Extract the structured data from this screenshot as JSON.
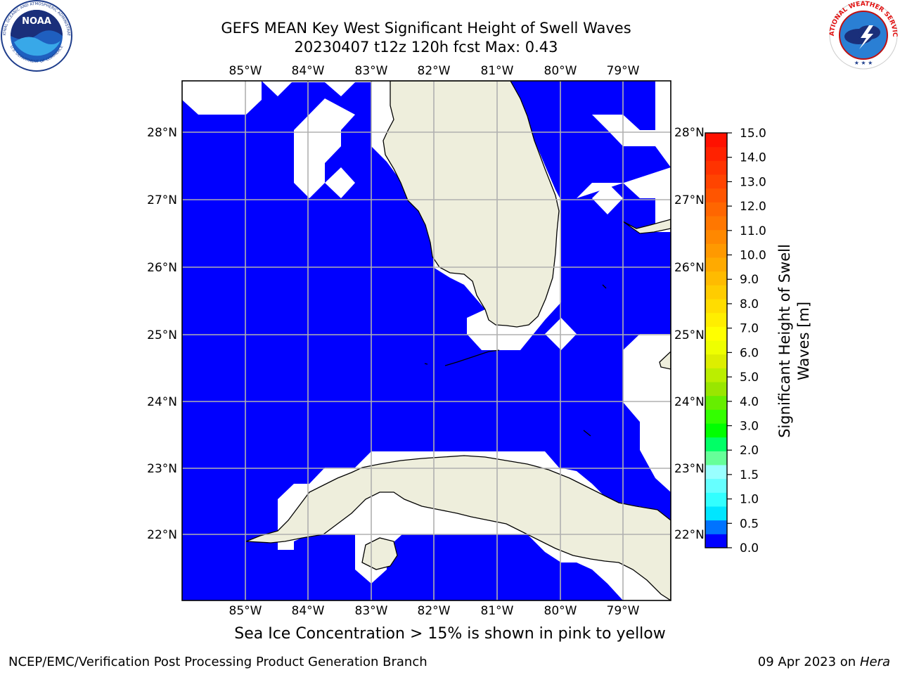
{
  "header": {
    "title_line1": "GEFS MEAN Key West Significant Height of Swell Waves",
    "title_line2": "20230407 t12z 120h fcst   Max: 0.43"
  },
  "logos": {
    "left": {
      "name": "NOAA",
      "ring_text": "NATIONAL OCEANIC AND ATMOSPHERIC ADMINISTRATION",
      "bottom_text": "U.S. DEPARTMENT OF COMMERCE"
    },
    "right": {
      "ring_text": "NATIONAL WEATHER SERVICE"
    }
  },
  "map": {
    "region": "Florida Straits / Key West",
    "lon_labels": [
      "85°W",
      "84°W",
      "83°W",
      "82°W",
      "81°W",
      "80°W",
      "79°W"
    ],
    "lat_labels": [
      "28°N",
      "27°N",
      "26°N",
      "25°N",
      "24°N",
      "23°N",
      "22°N"
    ],
    "colors": {
      "water": "#0000ff",
      "land": "#eeeedc",
      "grid": "#b0b0b0",
      "no_data": "#ffffff"
    }
  },
  "colorbar": {
    "label": "Significant Height of Swell Waves [m]",
    "label_line1": "Significant Height of Swell",
    "label_line2": "Waves [m]",
    "ticks": [
      "15.0",
      "14.0",
      "13.0",
      "12.0",
      "11.0",
      "10.0",
      "9.0",
      "8.0",
      "7.0",
      "6.0",
      "5.0",
      "4.0",
      "3.0",
      "2.0",
      "1.5",
      "1.0",
      "0.5",
      "0.0"
    ],
    "levels": [
      0.0,
      0.5,
      1.0,
      1.5,
      2.0,
      2.5,
      3.0,
      3.5,
      4.0,
      4.5,
      5.0,
      5.5,
      6.0,
      6.5,
      7.0,
      7.5,
      8.0,
      8.5,
      9.0,
      9.5,
      10.0,
      10.5,
      11.0,
      11.5,
      12.0,
      12.5,
      13.0,
      13.5,
      14.0,
      14.5,
      15.0
    ],
    "band_colors": [
      "#0000ff",
      "#0073ff",
      "#00e6ff",
      "#32ffff",
      "#66ffff",
      "#99ffff",
      "#66ff99",
      "#00ff66",
      "#00ff00",
      "#33ff00",
      "#66ee00",
      "#99e600",
      "#bbee00",
      "#ddee00",
      "#eeff00",
      "#ffff00",
      "#ffee00",
      "#ffdd00",
      "#ffcc00",
      "#ffbb00",
      "#ffaa00",
      "#ff9900",
      "#ff8800",
      "#ff7700",
      "#ff6600",
      "#ff5500",
      "#ff4400",
      "#ff3300",
      "#ff2200",
      "#ff1100"
    ]
  },
  "caption": "Sea Ice Concentration > 15% is shown in pink to yellow",
  "footer": {
    "left": "NCEP/EMC/Verification Post Processing Product Generation Branch",
    "right_date": "09 Apr 2023 on ",
    "right_host": "Hera"
  }
}
